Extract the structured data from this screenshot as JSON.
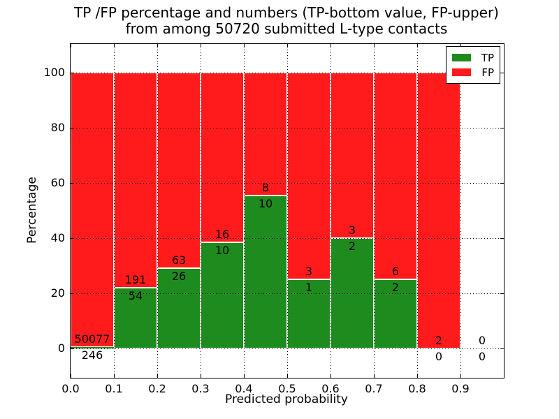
{
  "title": {
    "line1": "TP /FP percentage and numbers (TP-bottom value, FP-upper)",
    "line2": "from among 50720 submitted L-type contacts"
  },
  "axes": {
    "xlabel": "Predicted probability",
    "ylabel": "Percentage"
  },
  "legend": {
    "entries": [
      {
        "label": "TP",
        "color": "#1e8b1e"
      },
      {
        "label": "FP",
        "color": "#ff1b1b"
      }
    ],
    "position": "upper right"
  },
  "chart_data": {
    "type": "bar",
    "stacked": true,
    "normalized": "each bar total = 100%, green fraction = TP/(TP+FP)",
    "title": "TP /FP percentage and numbers (TP-bottom value, FP-upper) from among 50720 submitted L-type contacts",
    "xlabel": "Predicted probability",
    "ylabel": "Percentage",
    "total_submitted": 50720,
    "bins": [
      [
        0.0,
        0.1
      ],
      [
        0.1,
        0.2
      ],
      [
        0.2,
        0.3
      ],
      [
        0.3,
        0.4
      ],
      [
        0.4,
        0.5
      ],
      [
        0.5,
        0.6
      ],
      [
        0.6,
        0.7
      ],
      [
        0.7,
        0.8
      ],
      [
        0.8,
        0.9
      ],
      [
        0.9,
        1.0
      ]
    ],
    "series": [
      {
        "name": "TP",
        "color": "#1e8b1e",
        "counts": [
          246,
          54,
          26,
          10,
          10,
          1,
          2,
          2,
          0,
          0
        ]
      },
      {
        "name": "FP",
        "color": "#ff1b1b",
        "counts": [
          50077,
          191,
          63,
          16,
          8,
          3,
          3,
          6,
          2,
          0
        ]
      }
    ],
    "tp_percent_of_bin": [
      0.49,
      22.04,
      29.21,
      38.46,
      55.56,
      25.0,
      40.0,
      25.0,
      0.0,
      null
    ],
    "bar_top_percent": [
      100,
      100,
      100,
      100,
      100,
      100,
      100,
      100,
      100,
      null
    ],
    "x_ticks": [
      "0.0",
      "0.1",
      "0.2",
      "0.3",
      "0.4",
      "0.5",
      "0.6",
      "0.7",
      "0.8",
      "0.9"
    ],
    "y_ticks": [
      "0",
      "20",
      "40",
      "60",
      "80",
      "100"
    ],
    "xlim": [
      0.0,
      1.0
    ],
    "ylim": [
      -10.6,
      110.4
    ],
    "grid": "dotted black, both axes, drawn above bars",
    "bar_edge_color": "#ffffff",
    "legend_position": "upper right"
  }
}
